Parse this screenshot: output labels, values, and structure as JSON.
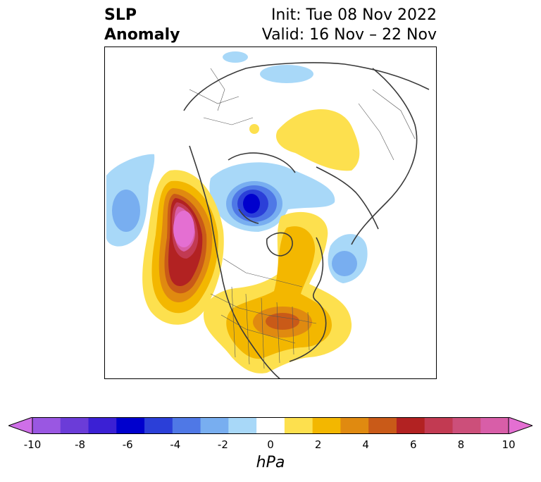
{
  "title": {
    "left_line1": "SLP",
    "left_line2": "Anomaly",
    "right_line1": "Init: Tue 08 Nov 2022",
    "right_line2": "Valid: 16 Nov – 22 Nov"
  },
  "colorbar": {
    "unit": "hPa",
    "tick_labels": [
      "-10",
      "-8",
      "-6",
      "-4",
      "-2",
      "0",
      "2",
      "4",
      "6",
      "8",
      "10"
    ],
    "colors": [
      "#cf6fe8",
      "#9a57e2",
      "#6b3cd8",
      "#3b20d4",
      "#0000cd",
      "#2b3fd8",
      "#4f78e6",
      "#78aef0",
      "#a8d8f8",
      "#ffffff",
      "#fde04e",
      "#f3b700",
      "#e08a10",
      "#c95a18",
      "#b22222",
      "#c23a52",
      "#cc4f7a",
      "#d85ea8",
      "#e46fd2"
    ]
  },
  "map": {
    "variable": "SLP Anomaly",
    "anomaly_features": [
      {
        "name": "gulf-of-alaska-high",
        "peak_hpa": 10
      },
      {
        "name": "eastern-us-high",
        "peak_hpa": 5
      },
      {
        "name": "baffin-bay-low",
        "peak_hpa": -6
      },
      {
        "name": "eastern-siberia-high",
        "peak_hpa": 2
      },
      {
        "name": "north-pacific-low",
        "peak_hpa": -3
      },
      {
        "name": "north-atlantic-low",
        "peak_hpa": -3
      }
    ]
  }
}
